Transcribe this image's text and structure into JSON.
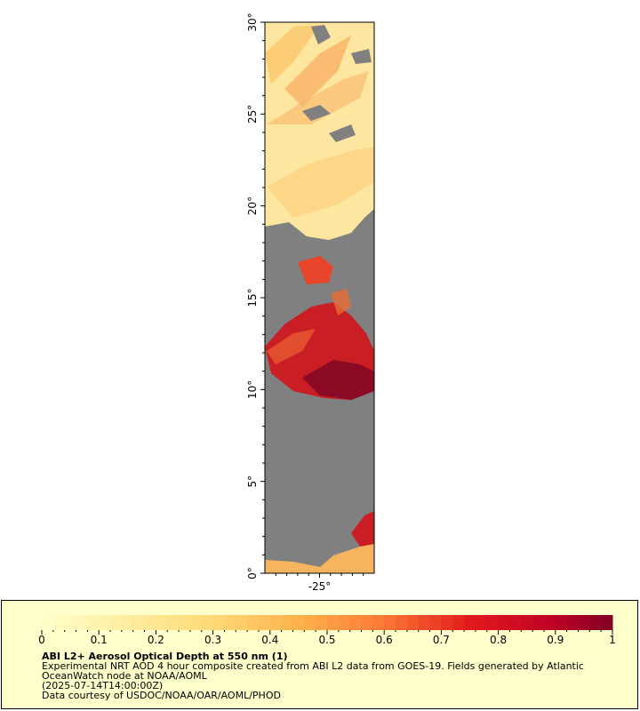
{
  "map": {
    "lat_ticks": [
      "0°",
      "5°",
      "10°",
      "15°",
      "20°",
      "25°",
      "30°"
    ],
    "lon_ticks": [
      "-25°"
    ],
    "lat_range": [
      0,
      30
    ],
    "lon_range": [
      -30,
      -20
    ],
    "colors": {
      "land_or_nodata": "#808080",
      "low_aod": "#fde9a8",
      "high_aod": "#8b0a24"
    }
  },
  "legend": {
    "ticks": [
      "0",
      "0.1",
      "0.2",
      "0.3",
      "0.4",
      "0.5",
      "0.6",
      "0.7",
      "0.8",
      "0.9",
      "1"
    ],
    "range": [
      0,
      1
    ],
    "title": "ABI L2+ Aerosol Optical Depth at 550 nm (1)",
    "description": "Experimental NRT AOD 4 hour composite created from ABI L2 data from GOES-19. Fields generated by Atlantic OceanWatch node at NOAA/AOML",
    "timestamp": "(2025-07-14T14:00:00Z)",
    "credit": "Data courtesy of USDOC/NOAA/OAR/AOML/PHOD",
    "background": "#ffffcc"
  }
}
